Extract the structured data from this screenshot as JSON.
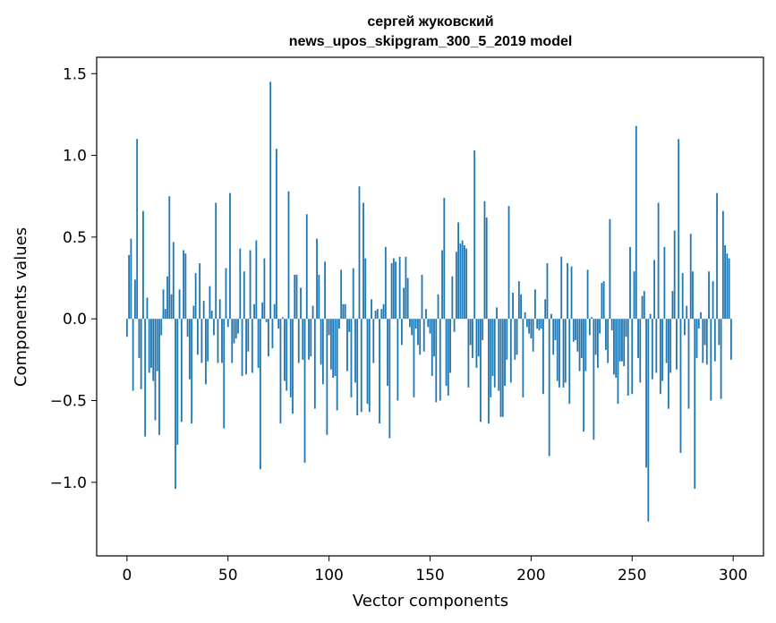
{
  "chart_data": {
    "type": "bar",
    "title_lines": [
      "сергей жуковский",
      "news_upos_skipgram_300_5_2019 model"
    ],
    "xlabel": "Vector components",
    "ylabel": "Components values",
    "xlim": [
      -15,
      315
    ],
    "ylim": [
      -1.45,
      1.6
    ],
    "xticks": [
      0,
      50,
      100,
      150,
      200,
      250,
      300
    ],
    "xtick_labels": [
      "0",
      "50",
      "100",
      "150",
      "200",
      "250",
      "300"
    ],
    "yticks": [
      -1.0,
      -0.5,
      0.0,
      0.5,
      1.0,
      1.5
    ],
    "ytick_labels": [
      "−1.0",
      "−0.5",
      "0.0",
      "0.5",
      "1.0",
      "1.5"
    ],
    "bar_color": "#1f77b4",
    "values": [
      -0.11,
      0.39,
      0.49,
      -0.44,
      0.24,
      1.1,
      -0.24,
      -0.43,
      0.66,
      -0.72,
      0.13,
      -0.33,
      -0.3,
      -0.38,
      -0.62,
      -0.32,
      -0.71,
      -0.1,
      0.18,
      0.06,
      0.26,
      0.75,
      0.15,
      0.47,
      -1.04,
      -0.77,
      0.18,
      -0.63,
      0.42,
      0.4,
      -0.11,
      -0.37,
      -0.64,
      0.08,
      0.28,
      -0.22,
      0.34,
      -0.27,
      0.11,
      -0.4,
      -0.26,
      0.2,
      0.05,
      -0.1,
      0.71,
      -0.27,
      0.12,
      -0.27,
      -0.67,
      0.31,
      -0.05,
      0.77,
      -0.27,
      -0.15,
      -0.12,
      -0.09,
      0.43,
      -0.35,
      0.29,
      -0.34,
      -0.2,
      0.42,
      -0.33,
      0.09,
      0.48,
      -0.3,
      -0.92,
      0.1,
      0.37,
      -0.02,
      -0.23,
      1.45,
      -0.18,
      0.09,
      1.04,
      -0.06,
      -0.64,
      0.01,
      -0.38,
      -0.44,
      0.78,
      -0.48,
      -0.58,
      0.27,
      0.27,
      -0.27,
      0.19,
      -0.25,
      -0.88,
      0.64,
      -0.25,
      -0.23,
      0.08,
      -0.55,
      0.49,
      0.27,
      -0.28,
      -0.4,
      0.35,
      -0.71,
      -0.1,
      -0.31,
      -0.36,
      -0.35,
      -0.56,
      -0.06,
      0.3,
      0.09,
      0.09,
      -0.32,
      -0.08,
      -0.48,
      0.31,
      -0.39,
      -0.59,
      0.81,
      -0.57,
      0.71,
      0.37,
      -0.52,
      -0.57,
      0.12,
      -0.27,
      0.05,
      0.06,
      -0.64,
      0.06,
      0.09,
      0.44,
      -0.41,
      -0.73,
      0.34,
      0.37,
      0.35,
      -0.5,
      0.38,
      -0.16,
      0.19,
      0.38,
      0.25,
      -0.05,
      -0.1,
      -0.48,
      -0.06,
      -0.16,
      -0.22,
      0.27,
      -0.2,
      0.06,
      -0.05,
      -0.09,
      -0.35,
      -0.23,
      -0.51,
      0.15,
      -0.5,
      0.42,
      0.74,
      -0.41,
      -0.47,
      -0.33,
      0.26,
      -0.08,
      0.41,
      0.59,
      0.46,
      0.48,
      0.45,
      0.43,
      -0.42,
      -0.16,
      -0.24,
      1.03,
      -0.3,
      -0.23,
      -0.63,
      -0.13,
      0.72,
      0.62,
      -0.64,
      -0.48,
      -0.35,
      -0.42,
      0.07,
      -0.44,
      -0.6,
      -0.6,
      -0.41,
      -0.25,
      0.69,
      -0.39,
      0.16,
      -0.25,
      -0.22,
      0.23,
      0.15,
      -0.48,
      0.04,
      -0.05,
      -0.09,
      -0.12,
      -0.2,
      0.18,
      -0.06,
      -0.07,
      -0.06,
      -0.46,
      0.12,
      0.34,
      -0.84,
      0.03,
      -0.22,
      -0.13,
      -0.38,
      -0.42,
      0.38,
      -0.42,
      -0.39,
      0.34,
      -0.52,
      0.32,
      -0.14,
      -0.13,
      -0.2,
      -0.32,
      -0.24,
      -0.69,
      -0.32,
      0.3,
      -0.1,
      0.01,
      -0.74,
      -0.22,
      -0.3,
      -0.09,
      0.22,
      0.23,
      -0.19,
      -0.27,
      0.61,
      -0.07,
      -0.34,
      -0.36,
      -0.52,
      -0.26,
      -0.26,
      -0.29,
      -0.11,
      -0.47,
      0.44,
      -0.46,
      0.29,
      1.18,
      -0.24,
      -0.39,
      0.14,
      0.17,
      -0.91,
      -1.24,
      0.03,
      -0.37,
      0.36,
      -0.33,
      0.71,
      -0.46,
      -0.38,
      0.44,
      -0.27,
      -0.55,
      -0.33,
      0.17,
      0.54,
      -0.31,
      1.1,
      -0.82,
      0.28,
      -0.1,
      0.08,
      -0.55,
      0.52,
      0.29,
      -1.04,
      -0.24,
      -0.06,
      0.04,
      -0.27,
      -0.16,
      -0.28,
      0.29,
      -0.5,
      0.23,
      -0.26,
      0.77,
      -0.16,
      -0.49,
      0.66,
      0.45,
      0.4,
      0.37,
      -0.25
    ]
  }
}
